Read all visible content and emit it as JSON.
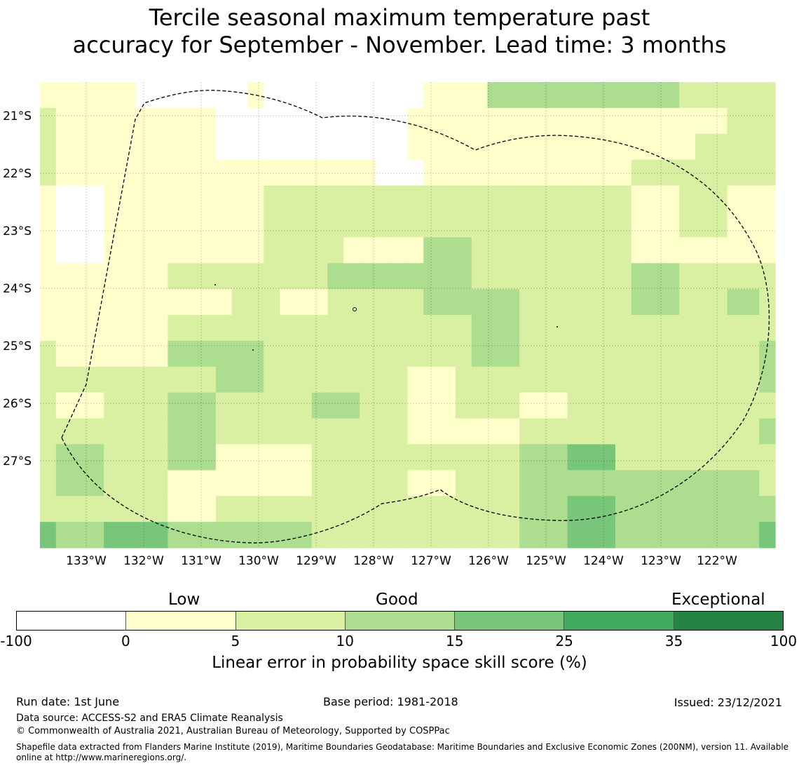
{
  "title_line1": "Tercile seasonal maximum temperature past",
  "title_line2": "accuracy for September - November. Lead time: 3 months",
  "map": {
    "lat_labels": [
      "21°S",
      "22°S",
      "23°S",
      "24°S",
      "25°S",
      "26°S",
      "27°S"
    ],
    "lon_labels": [
      "133°W",
      "132°W",
      "131°W",
      "130°W",
      "129°W",
      "128°W",
      "127°W",
      "126°W",
      "125°W",
      "124°W",
      "123°W",
      "122°W"
    ],
    "skill_grid": [
      [
        4,
        2,
        2,
        2,
        2,
        2,
        -20,
        -20,
        -20,
        -20,
        -20,
        -20,
        -20,
        2,
        -20,
        -20,
        -20,
        -20,
        -20,
        -20,
        -20,
        -20,
        -20,
        -20,
        2,
        2,
        2,
        2,
        12,
        12,
        12,
        12,
        12,
        12,
        12,
        12,
        12,
        12,
        12,
        12,
        8,
        8,
        8,
        8,
        8,
        8
      ],
      [
        8,
        2,
        2,
        2,
        2,
        2,
        2,
        2,
        2,
        2,
        2,
        -20,
        -20,
        -20,
        -20,
        -20,
        -20,
        -20,
        -20,
        -20,
        -20,
        -20,
        -20,
        2,
        2,
        2,
        2,
        2,
        2,
        2,
        2,
        2,
        2,
        2,
        2,
        2,
        2,
        2,
        2,
        2,
        2,
        2,
        2,
        8,
        8,
        8
      ],
      [
        8,
        2,
        2,
        2,
        2,
        2,
        2,
        2,
        2,
        2,
        2,
        -20,
        -20,
        -20,
        -20,
        -20,
        -20,
        -20,
        -20,
        -20,
        -20,
        -20,
        -20,
        2,
        2,
        2,
        2,
        2,
        2,
        2,
        2,
        2,
        2,
        2,
        2,
        2,
        2,
        2,
        2,
        2,
        2,
        8,
        8,
        8,
        8,
        8
      ],
      [
        8,
        2,
        2,
        2,
        2,
        2,
        2,
        2,
        2,
        2,
        2,
        2,
        2,
        2,
        2,
        2,
        2,
        2,
        2,
        2,
        2,
        -20,
        -20,
        -20,
        2,
        2,
        2,
        2,
        2,
        2,
        2,
        2,
        2,
        2,
        2,
        2,
        2,
        8,
        8,
        8,
        8,
        8,
        8,
        8,
        8,
        8
      ],
      [
        2,
        -20,
        -20,
        -20,
        2,
        2,
        2,
        2,
        2,
        2,
        2,
        2,
        2,
        2,
        8,
        8,
        8,
        8,
        8,
        8,
        8,
        8,
        8,
        8,
        8,
        8,
        8,
        8,
        8,
        8,
        8,
        8,
        8,
        8,
        8,
        8,
        8,
        2,
        2,
        2,
        8,
        8,
        8,
        2,
        2,
        2
      ],
      [
        2,
        -20,
        -20,
        -20,
        2,
        2,
        2,
        2,
        2,
        2,
        2,
        2,
        2,
        2,
        8,
        8,
        8,
        8,
        8,
        8,
        8,
        8,
        8,
        8,
        8,
        8,
        8,
        8,
        8,
        8,
        8,
        8,
        8,
        8,
        8,
        8,
        8,
        2,
        2,
        2,
        8,
        8,
        8,
        2,
        2,
        2
      ],
      [
        2,
        -20,
        -20,
        -20,
        2,
        2,
        2,
        2,
        2,
        2,
        2,
        2,
        2,
        2,
        8,
        8,
        8,
        8,
        8,
        2,
        2,
        2,
        2,
        2,
        12,
        12,
        12,
        8,
        8,
        8,
        8,
        8,
        8,
        8,
        8,
        8,
        8,
        2,
        2,
        2,
        2,
        2,
        2,
        2,
        2,
        2
      ],
      [
        2,
        2,
        2,
        2,
        2,
        2,
        2,
        2,
        8,
        8,
        8,
        8,
        8,
        8,
        8,
        8,
        8,
        8,
        12,
        12,
        12,
        12,
        12,
        12,
        12,
        12,
        12,
        8,
        8,
        8,
        8,
        8,
        8,
        8,
        8,
        8,
        8,
        12,
        12,
        12,
        8,
        8,
        8,
        8,
        8,
        8
      ],
      [
        2,
        2,
        2,
        2,
        2,
        2,
        2,
        2,
        2,
        2,
        2,
        2,
        8,
        8,
        8,
        2,
        2,
        2,
        8,
        8,
        8,
        8,
        8,
        8,
        12,
        12,
        12,
        12,
        12,
        12,
        8,
        8,
        8,
        8,
        8,
        8,
        8,
        12,
        12,
        12,
        8,
        8,
        8,
        12,
        12,
        8
      ],
      [
        2,
        2,
        2,
        2,
        2,
        2,
        2,
        2,
        8,
        8,
        8,
        8,
        8,
        8,
        8,
        8,
        8,
        8,
        8,
        8,
        8,
        8,
        8,
        8,
        8,
        8,
        8,
        12,
        12,
        12,
        8,
        8,
        8,
        8,
        8,
        8,
        8,
        8,
        8,
        8,
        8,
        8,
        8,
        8,
        8,
        8
      ],
      [
        8,
        2,
        2,
        2,
        2,
        2,
        2,
        2,
        12,
        12,
        12,
        12,
        12,
        12,
        8,
        8,
        8,
        8,
        8,
        8,
        8,
        8,
        8,
        8,
        8,
        8,
        8,
        12,
        12,
        12,
        8,
        8,
        8,
        8,
        8,
        8,
        8,
        8,
        8,
        8,
        8,
        8,
        8,
        8,
        8,
        12
      ],
      [
        8,
        8,
        8,
        8,
        8,
        8,
        8,
        8,
        8,
        8,
        8,
        12,
        12,
        12,
        8,
        8,
        8,
        8,
        8,
        8,
        8,
        8,
        8,
        2,
        2,
        2,
        8,
        8,
        8,
        8,
        8,
        8,
        8,
        8,
        8,
        8,
        8,
        8,
        8,
        8,
        8,
        8,
        8,
        8,
        8,
        12
      ],
      [
        8,
        2,
        2,
        2,
        8,
        8,
        8,
        8,
        12,
        12,
        12,
        8,
        8,
        8,
        8,
        8,
        8,
        12,
        12,
        12,
        8,
        8,
        8,
        2,
        2,
        2,
        8,
        8,
        8,
        8,
        2,
        2,
        2,
        8,
        8,
        8,
        8,
        8,
        8,
        8,
        8,
        8,
        8,
        8,
        8,
        8
      ],
      [
        8,
        8,
        8,
        8,
        8,
        8,
        8,
        8,
        12,
        12,
        12,
        8,
        8,
        8,
        8,
        8,
        8,
        8,
        8,
        8,
        8,
        8,
        8,
        2,
        2,
        2,
        2,
        2,
        2,
        2,
        8,
        8,
        8,
        8,
        8,
        8,
        8,
        8,
        8,
        8,
        8,
        8,
        8,
        8,
        8,
        12
      ],
      [
        8,
        12,
        12,
        12,
        8,
        8,
        8,
        8,
        12,
        12,
        12,
        2,
        2,
        2,
        2,
        2,
        2,
        8,
        8,
        8,
        8,
        8,
        8,
        8,
        8,
        8,
        8,
        8,
        8,
        8,
        12,
        12,
        12,
        20,
        20,
        20,
        8,
        8,
        8,
        8,
        8,
        8,
        8,
        8,
        8,
        8
      ],
      [
        8,
        12,
        12,
        12,
        8,
        8,
        8,
        8,
        2,
        2,
        2,
        2,
        2,
        2,
        2,
        2,
        2,
        8,
        8,
        8,
        8,
        8,
        8,
        2,
        2,
        2,
        8,
        8,
        8,
        8,
        12,
        12,
        12,
        12,
        12,
        12,
        12,
        12,
        12,
        12,
        12,
        12,
        12,
        12,
        12,
        8
      ],
      [
        8,
        8,
        8,
        8,
        8,
        8,
        8,
        8,
        2,
        2,
        2,
        8,
        8,
        8,
        8,
        8,
        8,
        8,
        8,
        8,
        8,
        8,
        8,
        8,
        8,
        8,
        8,
        8,
        8,
        8,
        12,
        12,
        12,
        20,
        20,
        20,
        12,
        12,
        12,
        12,
        12,
        12,
        12,
        12,
        12,
        12
      ],
      [
        20,
        12,
        12,
        12,
        20,
        20,
        20,
        20,
        12,
        12,
        12,
        12,
        12,
        12,
        12,
        12,
        12,
        8,
        8,
        8,
        8,
        8,
        8,
        8,
        8,
        8,
        8,
        8,
        8,
        8,
        12,
        12,
        12,
        20,
        20,
        20,
        12,
        12,
        12,
        12,
        12,
        12,
        12,
        12,
        12,
        20
      ]
    ]
  },
  "colorbar": {
    "category_low": "Low",
    "category_good": "Good",
    "category_exceptional": "Exceptional",
    "bins": [
      {
        "from": -100,
        "to": 0,
        "color": "#ffffff"
      },
      {
        "from": 0,
        "to": 5,
        "color": "#ffffcc"
      },
      {
        "from": 5,
        "to": 10,
        "color": "#d9f0a3"
      },
      {
        "from": 10,
        "to": 15,
        "color": "#addd8e"
      },
      {
        "from": 15,
        "to": 25,
        "color": "#78c679"
      },
      {
        "from": 25,
        "to": 35,
        "color": "#41ab5d"
      },
      {
        "from": 35,
        "to": 100,
        "color": "#238443"
      }
    ],
    "tick_labels": [
      "-100",
      "0",
      "5",
      "10",
      "15",
      "25",
      "35",
      "100"
    ],
    "title": "Linear error in probability space skill score (%)"
  },
  "footer": {
    "run_date": "Run date: 1st June",
    "base_period": "Base period: 1981-2018",
    "issued": "Issued: 23/12/2021",
    "data_source": "Data source: ACCESS-S2 and ERA5 Climate Reanalysis",
    "copyright": "© Commonwealth of Australia 2021, Australian Bureau of Meteorology, Supported by COSPPac",
    "shapefile_line1": "Shapefile data extracted from Flanders Marine Institute (2019), Maritime Boundaries Geodatabase: Maritime Boundaries and Exclusive Economic Zones (200NM), version 11. Available",
    "shapefile_line2": "online at http://www.marineregions.org/."
  }
}
